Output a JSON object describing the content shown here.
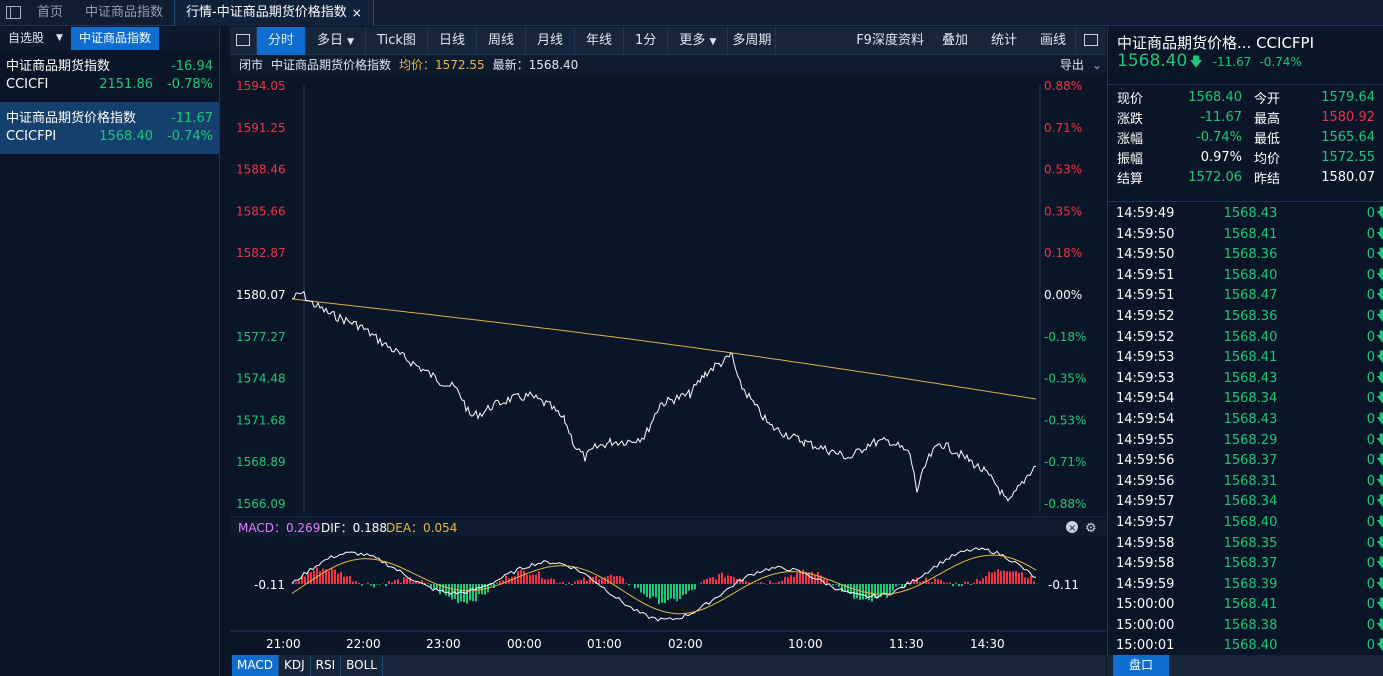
{
  "topbar": {
    "home": "首页",
    "tab1": "中证商品指数",
    "active": "行情-中证商品期货价格指数",
    "close": "×"
  },
  "left": {
    "tabs": [
      "自选股",
      "中证商品指数"
    ],
    "items": [
      {
        "name": "中证商品期货指数",
        "chg": "-16.94",
        "code": "CCICFI",
        "price": "2151.86",
        "pct": "-0.78%"
      },
      {
        "name": "中证商品期货价格指数",
        "chg": "-11.67",
        "code": "CCICFPI",
        "price": "1568.40",
        "pct": "-0.74%"
      }
    ]
  },
  "toolbar": {
    "left": [
      "分时",
      "多日",
      "Tick图",
      "日线",
      "周线",
      "月线",
      "年线",
      "1分",
      "更多",
      "多周期"
    ],
    "right": [
      "F9深度资料",
      "叠加",
      "统计",
      "画线"
    ]
  },
  "status": {
    "closed": "闭市",
    "name": "中证商品期货价格指数",
    "avg_label": "均价：1572.55",
    "last_label": "最新：1568.40",
    "export": "导出"
  },
  "yaxis_left": [
    "1594.05",
    "1591.25",
    "1588.46",
    "1585.66",
    "1582.87",
    "1580.07",
    "1577.27",
    "1574.48",
    "1571.68",
    "1568.89",
    "1566.09"
  ],
  "yaxis_right": [
    "0.88%",
    "0.71%",
    "0.53%",
    "0.35%",
    "0.18%",
    "0.00%",
    "-0.18%",
    "-0.35%",
    "-0.53%",
    "-0.71%",
    "-0.88%"
  ],
  "macd": {
    "label": "MACD：0.269",
    "dif": "DIF：0.188",
    "dea": "DEA：0.054",
    "level": "-0.11"
  },
  "xaxis": [
    "21:00",
    "22:00",
    "23:00",
    "00:00",
    "01:00",
    "02:00",
    "10:00",
    "11:30",
    "14:30"
  ],
  "bottom_tabs": [
    "MACD",
    "KDJ",
    "RSI",
    "BOLL"
  ],
  "quote": {
    "title": "中证商品期货价格...  CCICFPI",
    "price": "1568.40",
    "chg": "-11.67",
    "pct": "-0.74%",
    "table": [
      [
        "现价",
        "1568.40",
        "今开",
        "1579.64"
      ],
      [
        "涨跌",
        "-11.67",
        "最高",
        "1580.92"
      ],
      [
        "涨幅",
        "-0.74%",
        "最低",
        "1565.64"
      ],
      [
        "振幅",
        "0.97%",
        "均价",
        "1572.55"
      ],
      [
        "结算",
        "1572.06",
        "昨结",
        "1580.07"
      ]
    ]
  },
  "ticks": [
    [
      "14:59:49",
      "1568.43",
      "0"
    ],
    [
      "14:59:50",
      "1568.41",
      "0"
    ],
    [
      "14:59:50",
      "1568.36",
      "0"
    ],
    [
      "14:59:51",
      "1568.40",
      "0"
    ],
    [
      "14:59:51",
      "1568.47",
      "0"
    ],
    [
      "14:59:52",
      "1568.36",
      "0"
    ],
    [
      "14:59:52",
      "1568.40",
      "0"
    ],
    [
      "14:59:53",
      "1568.41",
      "0"
    ],
    [
      "14:59:53",
      "1568.43",
      "0"
    ],
    [
      "14:59:54",
      "1568.34",
      "0"
    ],
    [
      "14:59:54",
      "1568.43",
      "0"
    ],
    [
      "14:59:55",
      "1568.29",
      "0"
    ],
    [
      "14:59:56",
      "1568.37",
      "0"
    ],
    [
      "14:59:56",
      "1568.31",
      "0"
    ],
    [
      "14:59:57",
      "1568.34",
      "0"
    ],
    [
      "14:59:57",
      "1568.40",
      "0"
    ],
    [
      "14:59:58",
      "1568.35",
      "0"
    ],
    [
      "14:59:58",
      "1568.37",
      "0"
    ],
    [
      "14:59:59",
      "1568.39",
      "0"
    ],
    [
      "15:00:00",
      "1568.41",
      "0"
    ],
    [
      "15:00:00",
      "1568.38",
      "0"
    ],
    [
      "15:00:01",
      "1568.40",
      "0"
    ]
  ],
  "pankou": "盘口"
}
